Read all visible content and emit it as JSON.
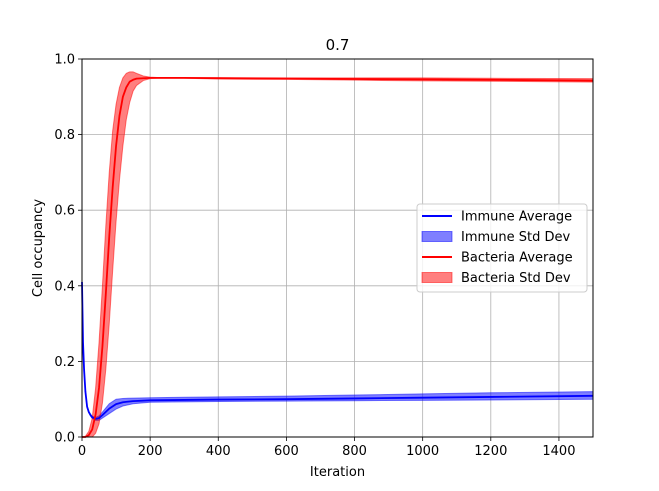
{
  "chart_data": {
    "type": "line",
    "title": "0.7",
    "xlabel": "Iteration",
    "ylabel": "Cell occupancy",
    "xlim": [
      0,
      1500
    ],
    "ylim": [
      0.0,
      1.0
    ],
    "xticks": [
      0,
      200,
      400,
      600,
      800,
      1000,
      1200,
      1400
    ],
    "yticks": [
      0.0,
      0.2,
      0.4,
      0.6,
      0.8,
      1.0
    ],
    "xtick_labels": [
      "0",
      "200",
      "400",
      "600",
      "800",
      "1000",
      "1200",
      "1400"
    ],
    "ytick_labels": [
      "0.0",
      "0.2",
      "0.4",
      "0.6",
      "0.8",
      "1.0"
    ],
    "grid": true,
    "legend_position": "center-right",
    "legend": [
      {
        "label": "Immune Average",
        "kind": "line",
        "color": "#0000ff"
      },
      {
        "label": "Immune Std Dev",
        "kind": "patch",
        "color": "#0000ff"
      },
      {
        "label": "Bacteria Average",
        "kind": "line",
        "color": "#ff0000"
      },
      {
        "label": "Bacteria Std Dev",
        "kind": "patch",
        "color": "#ff0000"
      }
    ],
    "series": [
      {
        "name": "Immune Average",
        "color": "#0000ff",
        "x": [
          0,
          3,
          6,
          10,
          15,
          20,
          25,
          30,
          40,
          50,
          60,
          80,
          100,
          120,
          150,
          200,
          300,
          400,
          600,
          800,
          1000,
          1200,
          1500
        ],
        "y": [
          0.41,
          0.25,
          0.18,
          0.12,
          0.08,
          0.066,
          0.058,
          0.052,
          0.048,
          0.05,
          0.058,
          0.075,
          0.087,
          0.092,
          0.095,
          0.097,
          0.098,
          0.099,
          0.1,
          0.102,
          0.104,
          0.106,
          0.109
        ],
        "band_upper": [
          0.41,
          0.25,
          0.18,
          0.12,
          0.082,
          0.068,
          0.06,
          0.055,
          0.052,
          0.056,
          0.066,
          0.088,
          0.1,
          0.102,
          0.103,
          0.104,
          0.105,
          0.106,
          0.108,
          0.111,
          0.114,
          0.117,
          0.12
        ],
        "band_lower": [
          0.41,
          0.25,
          0.18,
          0.12,
          0.078,
          0.064,
          0.056,
          0.049,
          0.044,
          0.044,
          0.05,
          0.062,
          0.074,
          0.082,
          0.088,
          0.092,
          0.093,
          0.094,
          0.095,
          0.096,
          0.097,
          0.098,
          0.1
        ]
      },
      {
        "name": "Bacteria Average",
        "color": "#ff0000",
        "x": [
          0,
          10,
          20,
          30,
          40,
          50,
          60,
          70,
          80,
          90,
          100,
          110,
          120,
          130,
          140,
          150,
          160,
          180,
          200,
          220,
          300,
          400,
          600,
          800,
          1000,
          1200,
          1500
        ],
        "y": [
          0.0,
          0.0,
          0.005,
          0.02,
          0.06,
          0.13,
          0.24,
          0.38,
          0.53,
          0.66,
          0.77,
          0.85,
          0.9,
          0.925,
          0.94,
          0.945,
          0.948,
          0.949,
          0.95,
          0.95,
          0.95,
          0.949,
          0.948,
          0.947,
          0.946,
          0.945,
          0.943
        ],
        "band_upper": [
          0.0,
          0.002,
          0.015,
          0.05,
          0.13,
          0.25,
          0.4,
          0.56,
          0.7,
          0.81,
          0.88,
          0.925,
          0.95,
          0.962,
          0.966,
          0.966,
          0.962,
          0.955,
          0.952,
          0.951,
          0.951,
          0.951,
          0.95,
          0.95,
          0.95,
          0.949,
          0.948
        ],
        "band_lower": [
          0.0,
          0.0,
          0.0,
          0.0,
          0.01,
          0.035,
          0.09,
          0.18,
          0.3,
          0.44,
          0.57,
          0.68,
          0.77,
          0.84,
          0.885,
          0.915,
          0.93,
          0.943,
          0.948,
          0.949,
          0.949,
          0.947,
          0.946,
          0.944,
          0.942,
          0.941,
          0.939
        ]
      }
    ]
  }
}
